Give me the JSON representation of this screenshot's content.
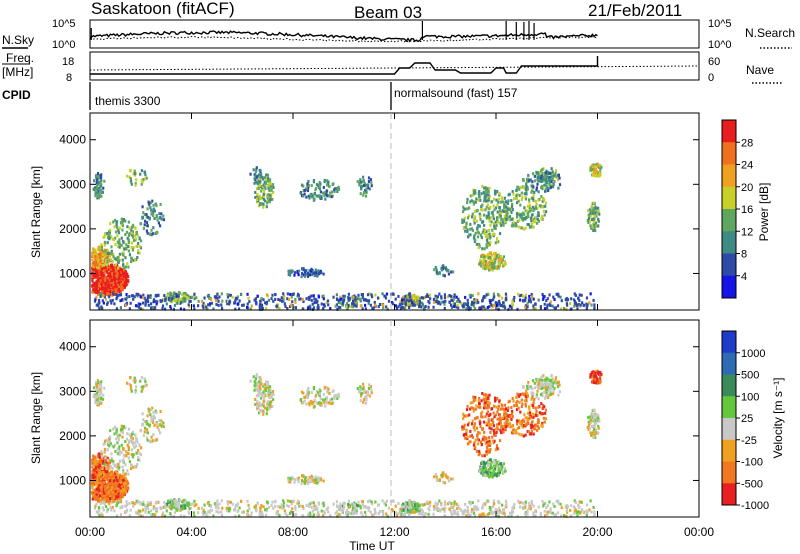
{
  "header": {
    "station": "Saskatoon (fitACF)",
    "beam": "Beam 03",
    "date": "21/Feb/2011"
  },
  "noise_panel": {
    "left_label": "N.Sky",
    "right_label": "N.Search",
    "left_ticks": [
      "10^5",
      "10^0"
    ],
    "right_ticks": [
      "10^5",
      "10^0"
    ]
  },
  "freq_panel": {
    "left_label_1": "Freq.",
    "left_label_2": "[MHz]",
    "right_label": "Nave",
    "left_ticks": [
      "18",
      "8"
    ],
    "right_ticks": [
      "60",
      "0"
    ]
  },
  "cpid": {
    "label": "CPID",
    "programs": [
      {
        "name": "themis 3300",
        "start_hour": 0
      },
      {
        "name": "normalsound (fast) 157",
        "start_hour": 12
      }
    ]
  },
  "chart_data": [
    {
      "type": "heatmap",
      "quantity": "power",
      "ylabel": "Slant Range [km]",
      "yticks": [
        "1000",
        "2000",
        "3000",
        "4000"
      ],
      "ylim": [
        180,
        4600
      ],
      "colorbar_label": "Power [dB]",
      "colorbar_ticks": [
        "4",
        "8",
        "12",
        "16",
        "20",
        "24",
        "28"
      ],
      "colors": [
        "#1414e6",
        "#2c4aa6",
        "#3f8a84",
        "#5fa65f",
        "#c8d028",
        "#f0a020",
        "#f07020",
        "#e81e1e"
      ]
    },
    {
      "type": "heatmap",
      "quantity": "velocity",
      "ylabel": "Slant Range [km]",
      "yticks": [
        "1000",
        "2000",
        "3000",
        "4000"
      ],
      "ylim": [
        180,
        4600
      ],
      "colorbar_label": "Velocity [m s⁻¹]",
      "colorbar_ticks": [
        "1000",
        "500",
        "100",
        "25",
        "-25",
        "-100",
        "-500",
        "-1000"
      ],
      "colors": [
        "#1e3cc8",
        "#2d6cb4",
        "#3a8a5a",
        "#64c83c",
        "#c8c8c8",
        "#f0a020",
        "#f07820",
        "#e82020"
      ]
    }
  ],
  "xaxis": {
    "label": "Time UT",
    "ticks": [
      "00:00",
      "04:00",
      "08:00",
      "12:00",
      "16:00",
      "20:00",
      "00:00"
    ],
    "range_hours": [
      0,
      24
    ]
  }
}
